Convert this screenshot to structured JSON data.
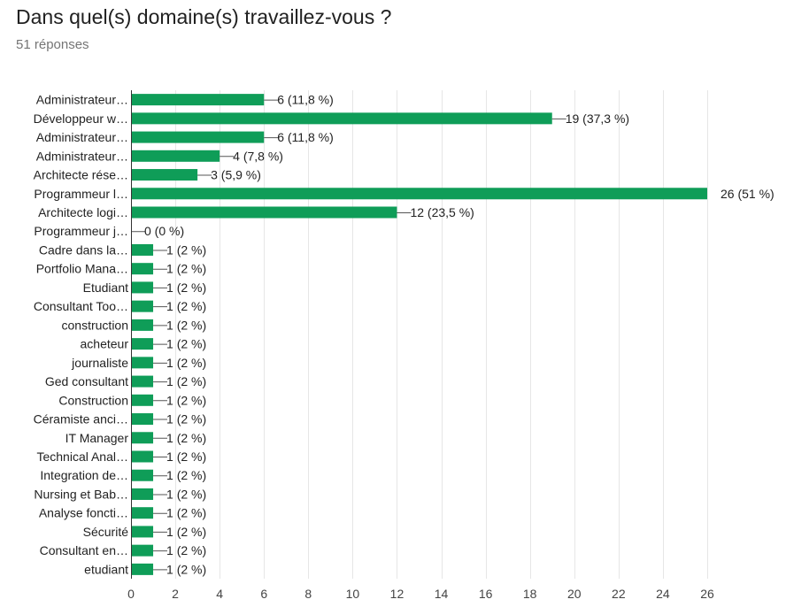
{
  "header": {
    "title": "Dans quel(s) domaine(s) travaillez-vous ?",
    "subtitle": "51 réponses"
  },
  "chart_data": {
    "type": "bar",
    "orientation": "horizontal",
    "bar_color": "#0f9d58",
    "grid": true,
    "xlim": [
      0,
      26
    ],
    "xticks": [
      "0",
      "2",
      "4",
      "6",
      "8",
      "10",
      "12",
      "14",
      "16",
      "18",
      "20",
      "22",
      "24",
      "26"
    ],
    "categories": [
      "Administrateur…",
      "Développeur w…",
      "Administrateur…",
      "Administrateur…",
      "Architecte rése…",
      "Programmeur l…",
      "Architecte logi…",
      "Programmeur j…",
      "Cadre dans la…",
      "Portfolio Mana…",
      "Etudiant",
      "Consultant Too…",
      "construction",
      "acheteur",
      "journaliste",
      "Ged consultant",
      "Construction",
      "Céramiste anci…",
      "IT Manager",
      "Technical Anal…",
      "Integration de…",
      "Nursing et Bab…",
      "Analyse foncti…",
      "Sécurité",
      "Consultant en…",
      "etudiant"
    ],
    "values": [
      6,
      19,
      6,
      4,
      3,
      26,
      12,
      0,
      1,
      1,
      1,
      1,
      1,
      1,
      1,
      1,
      1,
      1,
      1,
      1,
      1,
      1,
      1,
      1,
      1,
      1
    ],
    "value_labels": [
      "6 (11,8 %)",
      "19 (37,3 %)",
      "6 (11,8 %)",
      "4 (7,8 %)",
      "3 (5,9 %)",
      "26 (51 %)",
      "12 (23,5 %)",
      "0 (0 %)",
      "1 (2 %)",
      "1 (2 %)",
      "1 (2 %)",
      "1 (2 %)",
      "1 (2 %)",
      "1 (2 %)",
      "1 (2 %)",
      "1 (2 %)",
      "1 (2 %)",
      "1 (2 %)",
      "1 (2 %)",
      "1 (2 %)",
      "1 (2 %)",
      "1 (2 %)",
      "1 (2 %)",
      "1 (2 %)",
      "1 (2 %)",
      "1 (2 %)"
    ]
  }
}
